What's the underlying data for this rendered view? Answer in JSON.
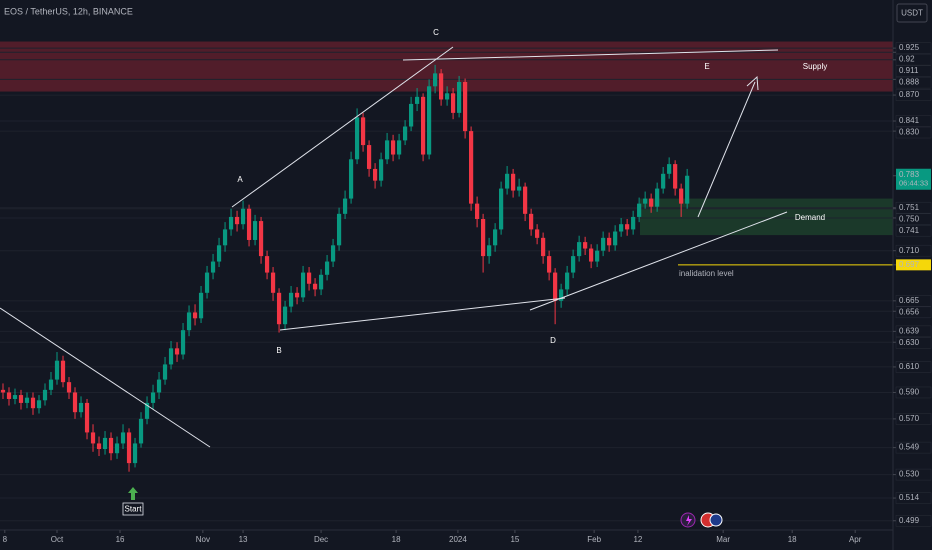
{
  "chart_data": {
    "type": "candlestick",
    "title": "EOS / TetherUS, 12h, BINANCE",
    "currency": "USDT",
    "log_scale": true,
    "grid": true,
    "up_color": "#089981",
    "down_color": "#f23645",
    "xlim": [
      -0.5,
      148.3
    ],
    "ylim": [
      0.493,
      0.985
    ],
    "xticks": [
      {
        "value": 0.3,
        "label": "8"
      },
      {
        "value": 9,
        "label": "Oct"
      },
      {
        "value": 19.5,
        "label": "16"
      },
      {
        "value": 33.3,
        "label": "Nov"
      },
      {
        "value": 40,
        "label": "13"
      },
      {
        "value": 53,
        "label": "Dec"
      },
      {
        "value": 65.5,
        "label": "18"
      },
      {
        "value": 75.8,
        "label": "2024"
      },
      {
        "value": 85.3,
        "label": "15"
      },
      {
        "value": 98.5,
        "label": "Feb"
      },
      {
        "value": 105.8,
        "label": "12"
      },
      {
        "value": 120,
        "label": "Mar"
      },
      {
        "value": 131.5,
        "label": "18"
      },
      {
        "value": 142,
        "label": "Apr"
      }
    ],
    "yticks": [
      0.925,
      0.92,
      0.911,
      0.888,
      {
        "value": 0.87,
        "label": "0.870"
      },
      0.841,
      {
        "value": 0.83,
        "label": "0.830"
      },
      0.751,
      {
        "value": 0.75,
        "label": "0.750"
      },
      0.741,
      {
        "value": 0.71,
        "label": "0.710"
      },
      0.665,
      0.656,
      0.639,
      {
        "value": 0.63,
        "label": "0.630"
      },
      {
        "value": 0.61,
        "label": "0.610"
      },
      {
        "value": 0.59,
        "label": "0.590"
      },
      {
        "value": 0.57,
        "label": "0.570"
      },
      0.549,
      {
        "value": 0.53,
        "label": "0.530"
      },
      0.514,
      0.499
    ],
    "current_price": {
      "value": 0.783,
      "countdown": "06:44:33",
      "color": "#089981"
    },
    "invalidation": {
      "value": 0.697,
      "label": "inalidation level",
      "color": "#f5d70a"
    },
    "zones": [
      {
        "label": "Supply",
        "from": 0.874,
        "to": 0.933,
        "color": "#5d1f2c"
      },
      {
        "label": "Demand",
        "from": 0.7246,
        "to": 0.76,
        "color": "#1d3f2c"
      }
    ],
    "points": [
      "A",
      "B",
      "C",
      "D",
      "E",
      "Start"
    ],
    "open": [
      0.592,
      0.59,
      0.585,
      0.588,
      0.582,
      0.586,
      0.578,
      0.584,
      0.592,
      0.6,
      0.615,
      0.598,
      0.59,
      0.575,
      0.582,
      0.56,
      0.552,
      0.548,
      0.556,
      0.545,
      0.552,
      0.56,
      0.538,
      0.552,
      0.57,
      0.582,
      0.59,
      0.6,
      0.612,
      0.625,
      0.62,
      0.64,
      0.655,
      0.65,
      0.672,
      0.69,
      0.7,
      0.715,
      0.73,
      0.742,
      0.735,
      0.75,
      0.72,
      0.738,
      0.705,
      0.69,
      0.672,
      0.645,
      0.66,
      0.672,
      0.668,
      0.69,
      0.68,
      0.675,
      0.688,
      0.7,
      0.715,
      0.745,
      0.76,
      0.8,
      0.845,
      0.815,
      0.79,
      0.778,
      0.8,
      0.82,
      0.805,
      0.82,
      0.835,
      0.86,
      0.868,
      0.805,
      0.88,
      0.895,
      0.865,
      0.872,
      0.85,
      0.885,
      0.83,
      0.755,
      0.74,
      0.705,
      0.715,
      0.73,
      0.77,
      0.785,
      0.768,
      0.772,
      0.745,
      0.73,
      0.722,
      0.705,
      0.69,
      0.665,
      0.675,
      0.69,
      0.705,
      0.718,
      0.712,
      0.7,
      0.71,
      0.722,
      0.715,
      0.728,
      0.735,
      0.73,
      0.742,
      0.755,
      0.76,
      0.752,
      0.77,
      0.785,
      0.795,
      0.77,
      0.755
    ],
    "high": [
      0.597,
      0.594,
      0.593,
      0.592,
      0.59,
      0.59,
      0.588,
      0.597,
      0.606,
      0.622,
      0.619,
      0.602,
      0.594,
      0.587,
      0.585,
      0.566,
      0.557,
      0.561,
      0.56,
      0.557,
      0.566,
      0.563,
      0.556,
      0.575,
      0.587,
      0.596,
      0.606,
      0.618,
      0.631,
      0.63,
      0.646,
      0.661,
      0.662,
      0.678,
      0.696,
      0.707,
      0.722,
      0.737,
      0.75,
      0.748,
      0.758,
      0.754,
      0.744,
      0.742,
      0.71,
      0.695,
      0.676,
      0.665,
      0.678,
      0.677,
      0.696,
      0.695,
      0.685,
      0.693,
      0.706,
      0.721,
      0.751,
      0.768,
      0.808,
      0.855,
      0.85,
      0.82,
      0.796,
      0.807,
      0.828,
      0.826,
      0.827,
      0.842,
      0.868,
      0.878,
      0.872,
      0.888,
      0.905,
      0.9,
      0.88,
      0.878,
      0.892,
      0.889,
      0.835,
      0.762,
      0.745,
      0.722,
      0.736,
      0.777,
      0.793,
      0.79,
      0.78,
      0.776,
      0.75,
      0.735,
      0.727,
      0.71,
      0.694,
      0.68,
      0.696,
      0.711,
      0.724,
      0.723,
      0.716,
      0.716,
      0.728,
      0.727,
      0.734,
      0.741,
      0.74,
      0.748,
      0.761,
      0.767,
      0.765,
      0.776,
      0.792,
      0.802,
      0.799,
      0.775,
      0.79
    ],
    "low": [
      0.585,
      0.58,
      0.581,
      0.577,
      0.578,
      0.573,
      0.574,
      0.58,
      0.588,
      0.596,
      0.594,
      0.585,
      0.57,
      0.571,
      0.555,
      0.546,
      0.543,
      0.544,
      0.54,
      0.541,
      0.548,
      0.532,
      0.535,
      0.549,
      0.566,
      0.577,
      0.585,
      0.596,
      0.608,
      0.614,
      0.616,
      0.635,
      0.644,
      0.646,
      0.667,
      0.684,
      0.695,
      0.709,
      0.724,
      0.728,
      0.73,
      0.714,
      0.715,
      0.698,
      0.684,
      0.665,
      0.638,
      0.64,
      0.655,
      0.662,
      0.664,
      0.674,
      0.669,
      0.67,
      0.683,
      0.695,
      0.71,
      0.74,
      0.755,
      0.795,
      0.808,
      0.782,
      0.77,
      0.772,
      0.795,
      0.798,
      0.8,
      0.815,
      0.83,
      0.852,
      0.798,
      0.8,
      0.872,
      0.858,
      0.858,
      0.843,
      0.845,
      0.822,
      0.748,
      0.732,
      0.69,
      0.698,
      0.709,
      0.725,
      0.764,
      0.761,
      0.762,
      0.738,
      0.724,
      0.716,
      0.698,
      0.683,
      0.645,
      0.659,
      0.67,
      0.685,
      0.7,
      0.706,
      0.694,
      0.695,
      0.705,
      0.709,
      0.71,
      0.723,
      0.724,
      0.725,
      0.737,
      0.75,
      0.746,
      0.747,
      0.765,
      0.78,
      0.763,
      0.742,
      0.75
    ],
    "close": [
      0.59,
      0.585,
      0.588,
      0.582,
      0.586,
      0.578,
      0.584,
      0.592,
      0.6,
      0.615,
      0.598,
      0.59,
      0.575,
      0.582,
      0.56,
      0.552,
      0.548,
      0.556,
      0.545,
      0.552,
      0.56,
      0.538,
      0.552,
      0.57,
      0.582,
      0.59,
      0.6,
      0.612,
      0.625,
      0.62,
      0.64,
      0.655,
      0.65,
      0.672,
      0.69,
      0.7,
      0.715,
      0.73,
      0.742,
      0.735,
      0.75,
      0.72,
      0.738,
      0.705,
      0.69,
      0.672,
      0.645,
      0.66,
      0.672,
      0.668,
      0.69,
      0.68,
      0.675,
      0.688,
      0.7,
      0.715,
      0.745,
      0.76,
      0.8,
      0.845,
      0.815,
      0.79,
      0.778,
      0.8,
      0.82,
      0.805,
      0.82,
      0.835,
      0.86,
      0.868,
      0.805,
      0.88,
      0.895,
      0.865,
      0.872,
      0.85,
      0.885,
      0.83,
      0.755,
      0.74,
      0.705,
      0.715,
      0.73,
      0.77,
      0.785,
      0.768,
      0.772,
      0.745,
      0.73,
      0.722,
      0.705,
      0.69,
      0.665,
      0.675,
      0.69,
      0.705,
      0.718,
      0.712,
      0.7,
      0.71,
      0.722,
      0.715,
      0.728,
      0.735,
      0.73,
      0.742,
      0.755,
      0.76,
      0.752,
      0.77,
      0.785,
      0.795,
      0.77,
      0.755,
      0.783
    ]
  }
}
